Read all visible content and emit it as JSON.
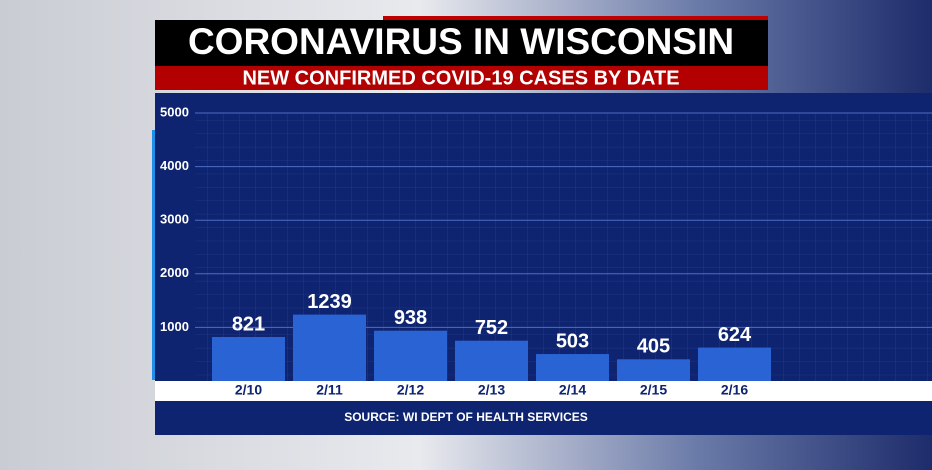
{
  "chart_data": {
    "type": "bar",
    "title": "CORONAVIRUS IN WISCONSIN",
    "subtitle": "NEW CONFIRMED COVID-19 CASES BY DATE",
    "source": "SOURCE: WI DEPT OF HEALTH SERVICES",
    "categories": [
      "2/10",
      "2/11",
      "2/12",
      "2/13",
      "2/14",
      "2/15",
      "2/16"
    ],
    "values": [
      821,
      1239,
      938,
      752,
      503,
      405,
      624
    ],
    "color": "#2a63d4",
    "ylim": [
      0,
      5000
    ],
    "yticks": [
      1000,
      2000,
      3000,
      4000,
      5000
    ],
    "grid": true
  }
}
